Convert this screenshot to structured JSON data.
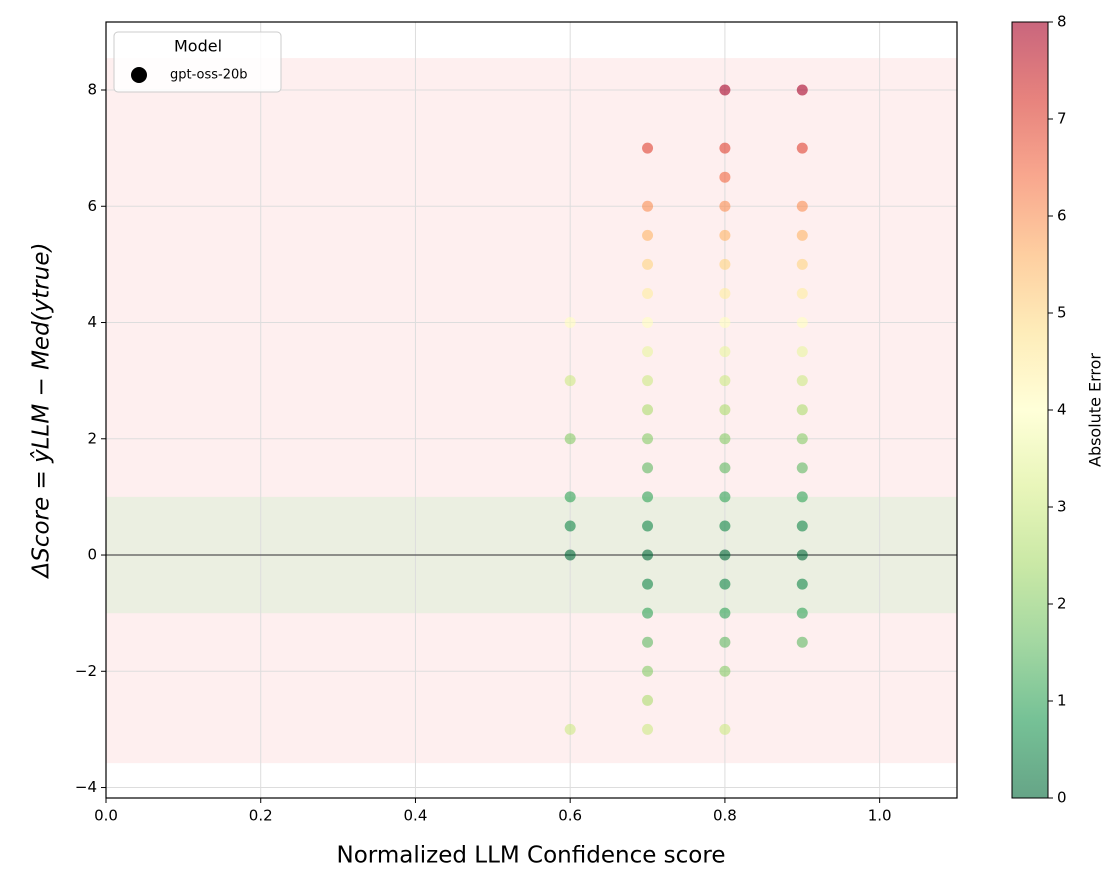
{
  "chart_data": {
    "type": "scatter",
    "xlabel": "Normalized LLM Confidence score",
    "ylabel": "ΔScore = ŷLLM − Med(ytrue)",
    "xlim": [
      0,
      1.1
    ],
    "xticks": [
      {
        "value": 0,
        "label": "0.0"
      },
      0.2,
      0.4,
      0.6,
      0.8,
      {
        "value": 1,
        "label": "1.0"
      }
    ],
    "ylim": [
      -4.18,
      9.17
    ],
    "yticks": [
      {
        "value": -4,
        "label": "−4"
      },
      {
        "value": -2,
        "label": "−2"
      },
      0,
      2,
      4,
      6,
      8
    ],
    "grid": true,
    "bands": [
      {
        "range": [
          -3.58,
          8.55
        ],
        "color": "#fde0e0"
      },
      {
        "range": [
          -1,
          1
        ],
        "color": "#d8f0d4"
      }
    ],
    "hline": 0,
    "legend": {
      "title": "Model",
      "position": "upper left"
    },
    "series": [
      {
        "name": "gpt-oss-20b",
        "color": "#000000",
        "x": [
          0.6,
          0.6,
          0.6,
          0.6,
          0.6,
          0.6,
          0.6,
          0.7,
          0.7,
          0.7,
          0.7,
          0.7,
          0.7,
          0.7,
          0.7,
          0.7,
          0.7,
          0.7,
          0.7,
          0.7,
          0.7,
          0.7,
          0.7,
          0.7,
          0.7,
          0.7,
          0.7,
          0.8,
          0.8,
          0.8,
          0.8,
          0.8,
          0.8,
          0.8,
          0.8,
          0.8,
          0.8,
          0.8,
          0.8,
          0.8,
          0.8,
          0.8,
          0.8,
          0.8,
          0.8,
          0.8,
          0.8,
          0.8,
          0.9,
          0.9,
          0.9,
          0.9,
          0.9,
          0.9,
          0.9,
          0.9,
          0.9,
          0.9,
          0.9,
          0.9,
          0.9,
          0.9,
          0.9,
          0.9,
          0.9,
          0.9
        ],
        "values": [
          4,
          3,
          2,
          1,
          0.5,
          0,
          -3,
          7,
          6,
          5.5,
          5,
          4.5,
          4,
          3.5,
          3,
          2.5,
          2,
          1.5,
          1,
          0.5,
          0,
          -0.5,
          -1,
          -1.5,
          -2,
          -2.5,
          -3,
          8,
          7,
          6.5,
          6,
          5.5,
          5,
          4.5,
          4,
          3.5,
          3,
          2.5,
          2,
          1.5,
          1,
          0.5,
          0,
          -0.5,
          -1,
          -1.5,
          -2,
          -3,
          8,
          7,
          6,
          5.5,
          5,
          4.5,
          4,
          3.5,
          3,
          2.5,
          2,
          1.5,
          1,
          0.5,
          0,
          -0.5,
          -1,
          -1.5
        ],
        "error": [
          4,
          3,
          2,
          1,
          0.5,
          0,
          3,
          7,
          6,
          5.5,
          5,
          4.5,
          4,
          3.5,
          3,
          2.5,
          2,
          1.5,
          1,
          0.5,
          0,
          0.5,
          1,
          1.5,
          2,
          2.5,
          3,
          8,
          7,
          6.5,
          6,
          5.5,
          5,
          4.5,
          4,
          3.5,
          3,
          2.5,
          2,
          1.5,
          1,
          0.5,
          0,
          0.5,
          1,
          1.5,
          2,
          3,
          8,
          7,
          6,
          5.5,
          5,
          4.5,
          4,
          3.5,
          3,
          2.5,
          2,
          1.5,
          1,
          0.5,
          0,
          0.5,
          1,
          1.5
        ]
      }
    ],
    "colorbar": {
      "label": "Absolute Error",
      "clim": [
        0,
        8
      ],
      "ticks": [
        0,
        1,
        2,
        3,
        4,
        5,
        6,
        7,
        8
      ],
      "colorscale": [
        "#006837",
        "#1a9850",
        "#66bd63",
        "#a6d96a",
        "#d9ef8b",
        "#ffffbf",
        "#fee08b",
        "#fdae61",
        "#f46d43",
        "#d73027",
        "#a50026"
      ],
      "opacity": 0.6
    }
  }
}
